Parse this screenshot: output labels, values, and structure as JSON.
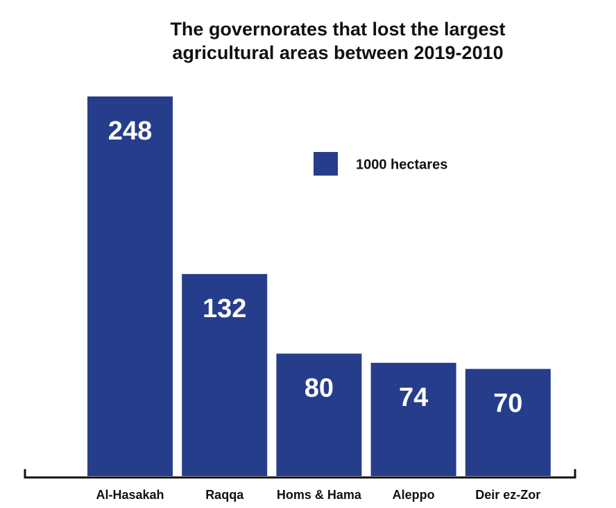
{
  "chart_data": {
    "type": "bar",
    "title": [
      "The governorates that lost the largest",
      "agricultural areas between 2019-2010"
    ],
    "categories": [
      "Al-Hasakah",
      "Raqqa",
      "Homs & Hama",
      "Aleppo",
      "Deir ez-Zor"
    ],
    "series": [
      {
        "name": "1000 hectares",
        "color": "#263d8c",
        "values": [
          248,
          132,
          80,
          74,
          70
        ]
      }
    ],
    "legend": "upper right"
  }
}
